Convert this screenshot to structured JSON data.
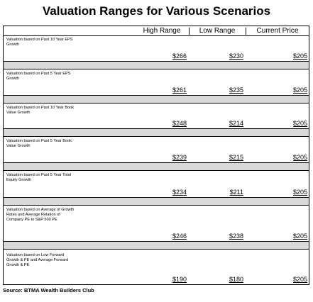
{
  "title": "Valuation Ranges for Various Scenarios",
  "columns": [
    "High Range",
    "Low Range",
    "Current Price"
  ],
  "rows": [
    {
      "label_lines": [
        "Valuation based on Past 10 Year EPS",
        "Growth"
      ],
      "high": "$266",
      "low": "$230",
      "current": "$205"
    },
    {
      "label_lines": [
        "Valuation based on Past 5 Year EPS",
        "Growth"
      ],
      "high": "$261",
      "low": "$235",
      "current": "$205"
    },
    {
      "label_lines": [
        "Valuation based on Past 10 Year Book",
        "Value Growth"
      ],
      "high": "$248",
      "low": "$214",
      "current": "$205"
    },
    {
      "label_lines": [
        "Valuation based on Past 5 Year Book",
        "Value Growth"
      ],
      "high": "$239",
      "low": "$215",
      "current": "$205"
    },
    {
      "label_lines": [
        "Valuation based on Past 5 Year Total",
        "Equity Growth"
      ],
      "high": "$234",
      "low": "$211",
      "current": "$205"
    },
    {
      "label_lines": [
        "Valuation based on Average of Growth",
        "Rates and Average Relation of",
        "Company PE to S&P 500 PE"
      ],
      "high": "$246",
      "low": "$238",
      "current": "$205"
    },
    {
      "label_lines": [
        "Valuation based on Low Forward",
        "Growth & PE and Average Forward",
        "Growth & PE"
      ],
      "high": "$190",
      "low": "$180",
      "current": "$205"
    }
  ],
  "source": "Source: BTMA Wealth Builders Club"
}
